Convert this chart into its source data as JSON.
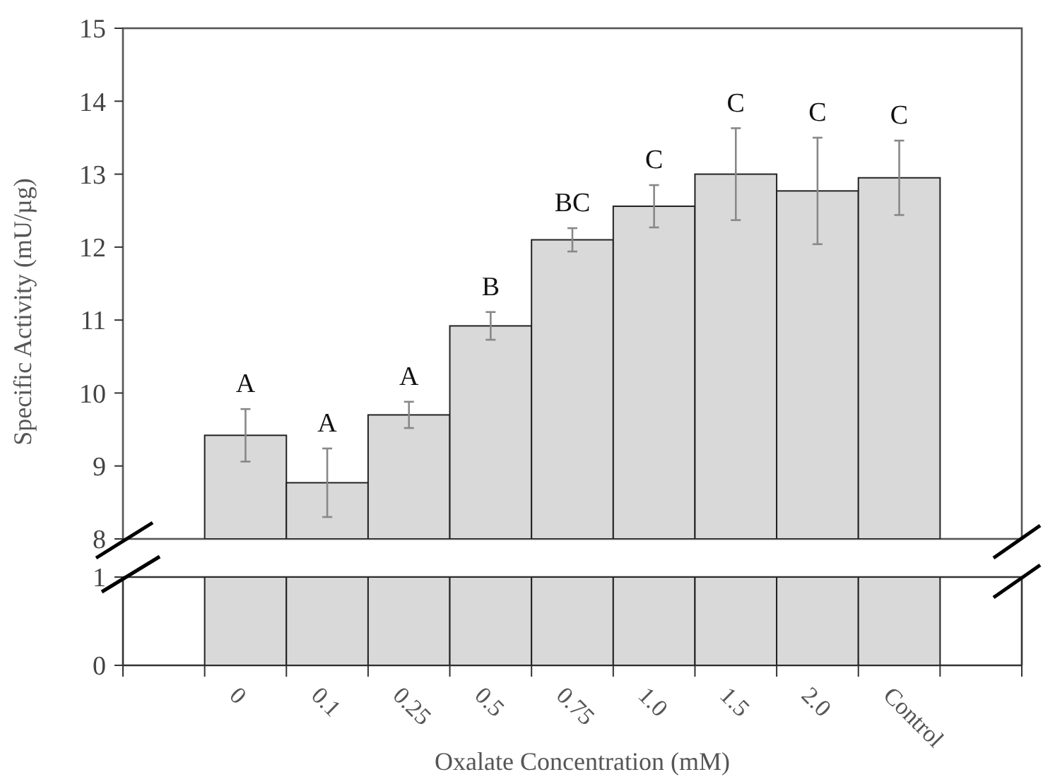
{
  "chart_data": [
    {
      "type": "bar",
      "ylabel": "Specific Activity (mU/µg)",
      "categories": [
        null,
        null,
        null,
        null,
        null,
        null,
        null,
        null,
        null
      ],
      "values": [
        9.42,
        8.77,
        9.7,
        10.92,
        12.1,
        12.56,
        13.0,
        12.77,
        12.95
      ],
      "errors": [
        0.36,
        0.47,
        0.18,
        0.19,
        0.16,
        0.29,
        0.63,
        0.73,
        0.51
      ],
      "color": "#d9d9d9",
      "ylim": [
        8,
        15
      ],
      "yticks": [
        8,
        9,
        10,
        11,
        12,
        13,
        14,
        15
      ],
      "tick_labels": "y",
      "annotations": [
        "A",
        "A",
        "A",
        "B",
        "BC",
        "C",
        "C",
        "C",
        "C"
      ]
    },
    {
      "type": "bar",
      "xlabel": "Oxalate Concentration (mM)",
      "categories": [
        "0",
        "0.1",
        "0.25",
        "0.5",
        "0.75",
        "1.0",
        "1.5",
        "2.0",
        "Control"
      ],
      "values": [
        1,
        1,
        1,
        1,
        1,
        1,
        1,
        1,
        1
      ],
      "color": "#d9d9d9",
      "ylim": [
        0,
        1
      ],
      "yticks": [
        0,
        1
      ]
    }
  ]
}
